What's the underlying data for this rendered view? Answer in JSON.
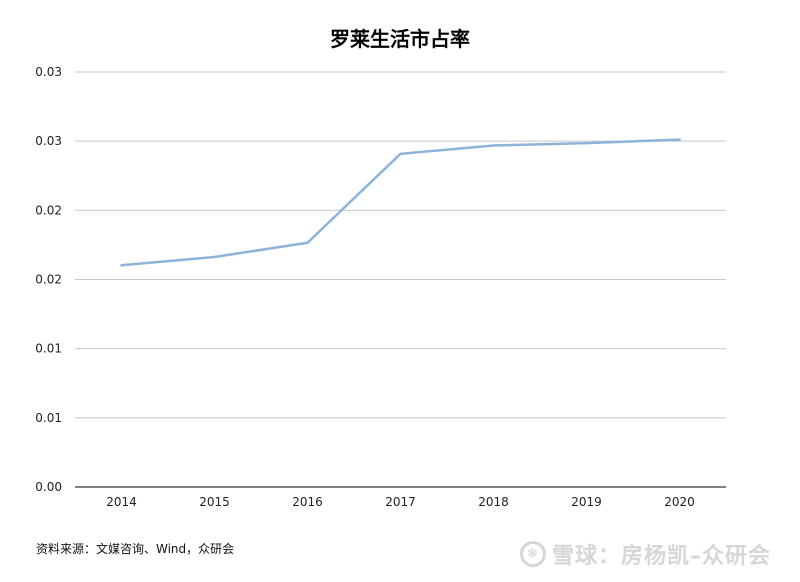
{
  "chart_data": {
    "type": "line",
    "title": "罗莱生活市占率",
    "categories": [
      "2014",
      "2015",
      "2016",
      "2017",
      "2018",
      "2019",
      "2020"
    ],
    "series": [
      {
        "values": [
          0.0187,
          0.0194,
          0.0206,
          0.0281,
          0.0288,
          0.029,
          0.0293
        ],
        "color": "#8db3d9"
      }
    ],
    "y_ticks": [
      "0.00",
      "0.01",
      "0.01",
      "0.02",
      "0.02",
      "0.03",
      "0.03"
    ],
    "ylim": [
      0,
      0.035
    ],
    "xlabel": "",
    "ylabel": "",
    "grid": true,
    "legend": "none"
  },
  "source_text": "资料来源：文媒咨询、Wind，众研会",
  "watermark": {
    "icon": "snowball-logo-icon",
    "text": "雪球：房杨凯–众研会"
  }
}
